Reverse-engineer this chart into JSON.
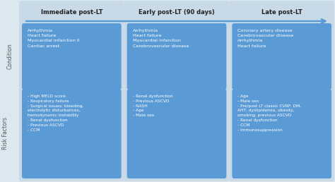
{
  "bg_color": "#dce8f0",
  "col_bg_color": "#c8d9e8",
  "box_color": "#5b9bd5",
  "text_color": "#ffffff",
  "row_label_color": "#555555",
  "arrow_color": "#5b9bd5",
  "col_headers": [
    "Immediate post-LT",
    "Early post-LT (90 days)",
    "Late post-LT"
  ],
  "condition_texts": [
    "Arrhythmia\nHeart failure\nMyocardial infarction II\nCardiac arrest",
    "Arrhythmia\nHeart failure\nMyocardial infarction\nCerebrovascular disease",
    "Coronary artery disease\nCerebrovascular disease\nArrhythmia\nHeart failure"
  ],
  "risk_texts": [
    "- High MELD score\n- Respiratory failure\n- Surgical issues: bleeding,\nelectrolytic disturbances,\nhemodynamic instability\n- Renal dysfunction\n- Previous ASCVD\n- CCM",
    "- Renal dysfunction\n- Previous ASCVD\n- NASH\n- Age\n- Male sex",
    "- Age\n- Male sex\n- Pre/post LT classic CVRF: DM,\nAHT, dyslipidemia, obesity,\nsmoking, previous ASCVD\n- Renal dysfunction\n- CCM\n- Immunosuppression"
  ],
  "condition_label": "Condition",
  "risk_label": "Risk Factors"
}
